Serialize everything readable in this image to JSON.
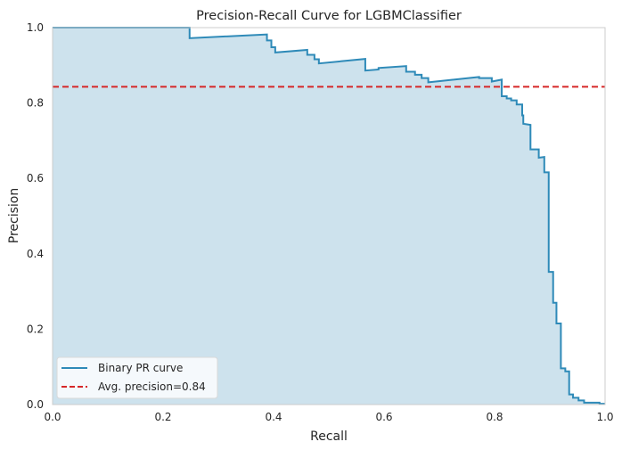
{
  "chart_data": {
    "type": "line",
    "title": "Precision-Recall Curve for LGBMClassifier",
    "xlabel": "Recall",
    "ylabel": "Precision",
    "xlim": [
      0,
      1
    ],
    "ylim": [
      0,
      1
    ],
    "xticks": [
      0.0,
      0.2,
      0.4,
      0.6,
      0.8,
      1.0
    ],
    "yticks": [
      0.0,
      0.2,
      0.4,
      0.6,
      0.8,
      1.0
    ],
    "xtick_labels": [
      "0.0",
      "0.2",
      "0.4",
      "0.6",
      "0.8",
      "1.0"
    ],
    "ytick_labels": [
      "0.0",
      "0.2",
      "0.4",
      "0.6",
      "0.8",
      "1.0"
    ],
    "grid": false,
    "legend_position": "lower-left",
    "series": [
      {
        "name": "Binary PR curve",
        "color": "#2e8ab8",
        "fill_color": "#cde2ed",
        "step": true,
        "points": [
          [
            0.0,
            1.0
          ],
          [
            0.248,
            1.0
          ],
          [
            0.248,
            0.972
          ],
          [
            0.388,
            0.982
          ],
          [
            0.388,
            0.966
          ],
          [
            0.396,
            0.966
          ],
          [
            0.396,
            0.948
          ],
          [
            0.403,
            0.948
          ],
          [
            0.403,
            0.934
          ],
          [
            0.461,
            0.941
          ],
          [
            0.461,
            0.928
          ],
          [
            0.474,
            0.928
          ],
          [
            0.474,
            0.916
          ],
          [
            0.482,
            0.916
          ],
          [
            0.482,
            0.905
          ],
          [
            0.566,
            0.917
          ],
          [
            0.566,
            0.886
          ],
          [
            0.59,
            0.889
          ],
          [
            0.59,
            0.893
          ],
          [
            0.64,
            0.898
          ],
          [
            0.64,
            0.883
          ],
          [
            0.656,
            0.883
          ],
          [
            0.656,
            0.875
          ],
          [
            0.668,
            0.875
          ],
          [
            0.668,
            0.866
          ],
          [
            0.68,
            0.866
          ],
          [
            0.68,
            0.855
          ],
          [
            0.772,
            0.869
          ],
          [
            0.772,
            0.866
          ],
          [
            0.795,
            0.866
          ],
          [
            0.795,
            0.857
          ],
          [
            0.813,
            0.862
          ],
          [
            0.813,
            0.818
          ],
          [
            0.822,
            0.818
          ],
          [
            0.822,
            0.812
          ],
          [
            0.83,
            0.812
          ],
          [
            0.83,
            0.807
          ],
          [
            0.84,
            0.807
          ],
          [
            0.84,
            0.796
          ],
          [
            0.85,
            0.796
          ],
          [
            0.85,
            0.767
          ],
          [
            0.852,
            0.767
          ],
          [
            0.852,
            0.745
          ],
          [
            0.865,
            0.742
          ],
          [
            0.865,
            0.677
          ],
          [
            0.88,
            0.677
          ],
          [
            0.88,
            0.655
          ],
          [
            0.89,
            0.657
          ],
          [
            0.89,
            0.616
          ],
          [
            0.898,
            0.616
          ],
          [
            0.898,
            0.352
          ],
          [
            0.906,
            0.352
          ],
          [
            0.906,
            0.27
          ],
          [
            0.912,
            0.27
          ],
          [
            0.912,
            0.215
          ],
          [
            0.92,
            0.215
          ],
          [
            0.92,
            0.096
          ],
          [
            0.928,
            0.096
          ],
          [
            0.928,
            0.088
          ],
          [
            0.935,
            0.088
          ],
          [
            0.935,
            0.027
          ],
          [
            0.942,
            0.027
          ],
          [
            0.942,
            0.018
          ],
          [
            0.952,
            0.018
          ],
          [
            0.952,
            0.011
          ],
          [
            0.962,
            0.011
          ],
          [
            0.962,
            0.005
          ],
          [
            0.99,
            0.005
          ],
          [
            0.99,
            0.002
          ],
          [
            1.0,
            0.002
          ]
        ]
      }
    ],
    "reference_line": {
      "name": "Avg. precision=0.84",
      "y": 0.843,
      "color": "#d62728",
      "dash": true
    },
    "legend": [
      {
        "label": "Binary PR curve",
        "color": "#2e8ab8",
        "style": "solid"
      },
      {
        "label": "Avg. precision=0.84",
        "color": "#d62728",
        "style": "dashed"
      }
    ]
  }
}
